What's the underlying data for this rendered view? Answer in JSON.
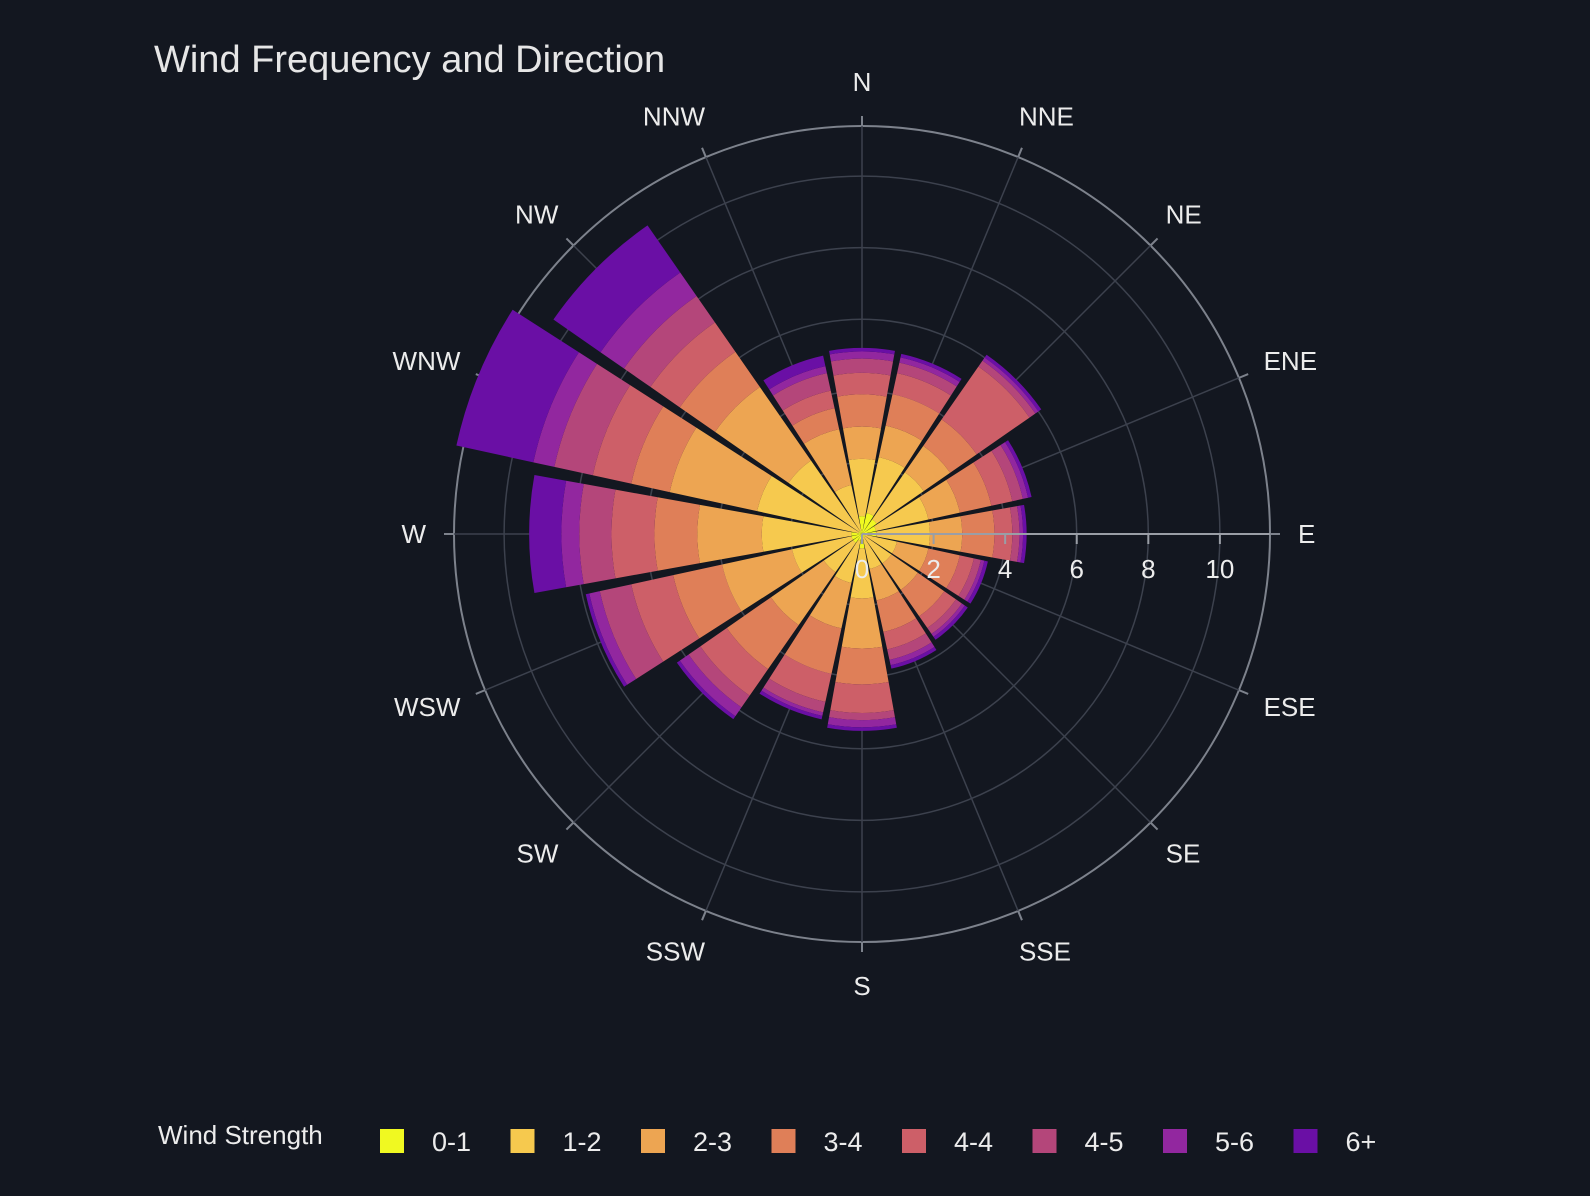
{
  "chart_data": {
    "type": "barpolar",
    "title": "Wind Frequency and Direction",
    "directions": [
      "N",
      "NNE",
      "NE",
      "ENE",
      "E",
      "ESE",
      "SE",
      "SSE",
      "S",
      "SSW",
      "SW",
      "WSW",
      "W",
      "WNW",
      "NW",
      "NNW"
    ],
    "radial_ticks": [
      "0",
      "2",
      "4",
      "6",
      "8",
      "10"
    ],
    "radial_range": [
      0,
      11.4
    ],
    "legend": {
      "title": "Wind Strength",
      "placement": "bottom"
    },
    "series": [
      {
        "name": "0-1",
        "color": "#f0f921",
        "values": [
          0.5,
          0.6,
          0.5,
          0.4,
          0.4,
          0.1,
          0.1,
          0.1,
          0.4,
          0.2,
          0.3,
          0.3,
          0.3,
          0.1,
          0.1,
          0.1
        ]
      },
      {
        "name": "1-2",
        "color": "#f6c94e",
        "values": [
          1.6,
          1.6,
          1.6,
          1.5,
          1.5,
          0.9,
          0.9,
          0.9,
          1.4,
          1.2,
          1.0,
          1.7,
          2.5,
          2.9,
          2.4,
          1.3
        ]
      },
      {
        "name": "2-3",
        "color": "#eda552",
        "values": [
          0.9,
          0.9,
          0.9,
          0.9,
          0.9,
          0.9,
          0.9,
          0.9,
          1.4,
          1.3,
          1.8,
          2.0,
          1.8,
          2.5,
          2.5,
          1.6
        ]
      },
      {
        "name": "3-4",
        "color": "#df7f58",
        "values": [
          0.9,
          0.9,
          0.9,
          0.9,
          0.9,
          0.9,
          0.9,
          0.9,
          1.0,
          1.3,
          1.5,
          1.4,
          1.2,
          1.1,
          1.2,
          0.6
        ]
      },
      {
        "name": "4-4",
        "color": "#cd5f68",
        "values": [
          0.6,
          0.6,
          1.8,
          0.6,
          0.5,
          0.4,
          0.4,
          0.5,
          0.8,
          0.8,
          0.9,
          1.2,
          1.2,
          1.1,
          1.0,
          0.5
        ]
      },
      {
        "name": "4-5",
        "color": "#b4467a",
        "values": [
          0.4,
          0.3,
          0.2,
          0.3,
          0.2,
          0.2,
          0.2,
          0.3,
          0.2,
          0.3,
          0.4,
          0.9,
          0.9,
          1.1,
          0.9,
          0.5
        ]
      },
      {
        "name": "5-6",
        "color": "#92279f",
        "values": [
          0.2,
          0.15,
          0.1,
          0.15,
          0.1,
          0.1,
          0.1,
          0.15,
          0.2,
          0.1,
          0.3,
          0.3,
          0.5,
          0.6,
          0.8,
          0.2
        ]
      },
      {
        "name": "6+",
        "color": "#6a0fa5",
        "values": [
          0.1,
          0.1,
          0.1,
          0.1,
          0.1,
          0.1,
          0.1,
          0.1,
          0.1,
          0.1,
          0.1,
          0.1,
          0.9,
          2.2,
          1.6,
          0.3
        ]
      }
    ]
  },
  "colors": {
    "background": "#131720",
    "grid": "#3c414d",
    "outer_ring": "#7d828c",
    "axis_line": "#9a9ea6",
    "text": "#ececec"
  }
}
